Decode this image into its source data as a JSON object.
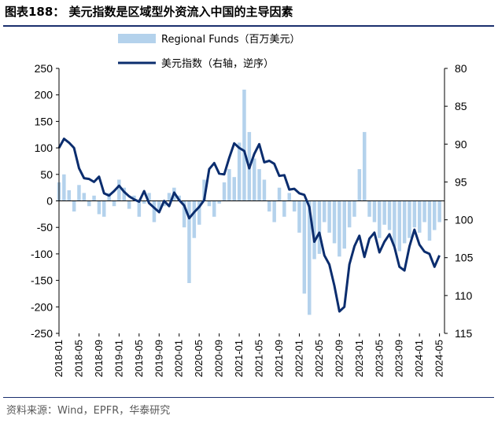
{
  "title": "图表188：  美元指数是区域型外资流入中国的主导因素",
  "source": "资料来源：Wind，EPFR，华泰研究",
  "chart_data": {
    "type": "bar+line",
    "left_axis": {
      "ylim": [
        -250,
        250
      ],
      "ticks": [
        "250",
        "200",
        "150",
        "100",
        "50",
        "0",
        "-50",
        "-100",
        "-150",
        "-200",
        "-250"
      ]
    },
    "right_axis": {
      "ylim": [
        80,
        115
      ],
      "reversed": true,
      "ticks": [
        "80",
        "85",
        "90",
        "95",
        "100",
        "105",
        "110",
        "115"
      ]
    },
    "x_ticks": [
      "2018-01",
      "2018-05",
      "2018-09",
      "2019-01",
      "2019-05",
      "2019-09",
      "2020-01",
      "2020-05",
      "2020-09",
      "2021-01",
      "2021-05",
      "2021-09",
      "2022-01",
      "2022-05",
      "2022-09",
      "2023-01",
      "2023-05",
      "2023-09",
      "2024-01",
      "2024-05"
    ],
    "x_range": [
      "2018-01",
      "2024-06"
    ],
    "legend": {
      "position": "top-center"
    },
    "series": [
      {
        "name": "Regional Funds（百万美元）",
        "type": "bar",
        "axis": "left",
        "color": "#b4d2ec",
        "points": [
          [
            "2018-01",
            35
          ],
          [
            "2018-02",
            50
          ],
          [
            "2018-03",
            20
          ],
          [
            "2018-04",
            -20
          ],
          [
            "2018-05",
            30
          ],
          [
            "2018-06",
            15
          ],
          [
            "2018-07",
            -10
          ],
          [
            "2018-08",
            10
          ],
          [
            "2018-09",
            -25
          ],
          [
            "2018-10",
            -30
          ],
          [
            "2018-11",
            15
          ],
          [
            "2018-12",
            -10
          ],
          [
            "2019-01",
            40
          ],
          [
            "2019-02",
            25
          ],
          [
            "2019-03",
            -15
          ],
          [
            "2019-04",
            10
          ],
          [
            "2019-05",
            -30
          ],
          [
            "2019-06",
            -5
          ],
          [
            "2019-07",
            15
          ],
          [
            "2019-08",
            -40
          ],
          [
            "2019-09",
            -20
          ],
          [
            "2019-10",
            -10
          ],
          [
            "2019-11",
            15
          ],
          [
            "2019-12",
            25
          ],
          [
            "2020-01",
            10
          ],
          [
            "2020-02",
            -50
          ],
          [
            "2020-03",
            -155
          ],
          [
            "2020-04",
            -70
          ],
          [
            "2020-05",
            -45
          ],
          [
            "2020-06",
            40
          ],
          [
            "2020-07",
            -10
          ],
          [
            "2020-08",
            -30
          ],
          [
            "2020-09",
            -5
          ],
          [
            "2020-10",
            35
          ],
          [
            "2020-11",
            60
          ],
          [
            "2020-12",
            45
          ],
          [
            "2021-01",
            110
          ],
          [
            "2021-02",
            210
          ],
          [
            "2021-03",
            130
          ],
          [
            "2021-04",
            80
          ],
          [
            "2021-05",
            60
          ],
          [
            "2021-06",
            40
          ],
          [
            "2021-07",
            -20
          ],
          [
            "2021-08",
            -40
          ],
          [
            "2021-09",
            25
          ],
          [
            "2021-10",
            -30
          ],
          [
            "2021-11",
            15
          ],
          [
            "2021-12",
            -20
          ],
          [
            "2022-01",
            -60
          ],
          [
            "2022-02",
            -175
          ],
          [
            "2022-03",
            -215
          ],
          [
            "2022-04",
            -110
          ],
          [
            "2022-05",
            -100
          ],
          [
            "2022-06",
            -40
          ],
          [
            "2022-07",
            -60
          ],
          [
            "2022-08",
            -80
          ],
          [
            "2022-09",
            -105
          ],
          [
            "2022-10",
            -90
          ],
          [
            "2022-11",
            -50
          ],
          [
            "2022-12",
            -30
          ],
          [
            "2023-01",
            60
          ],
          [
            "2023-02",
            130
          ],
          [
            "2023-03",
            -30
          ],
          [
            "2023-04",
            -40
          ],
          [
            "2023-05",
            -70
          ],
          [
            "2023-06",
            -45
          ],
          [
            "2023-07",
            -55
          ],
          [
            "2023-08",
            -85
          ],
          [
            "2023-09",
            -95
          ],
          [
            "2023-10",
            -80
          ],
          [
            "2023-11",
            -70
          ],
          [
            "2023-12",
            -50
          ],
          [
            "2024-01",
            -60
          ],
          [
            "2024-02",
            -40
          ],
          [
            "2024-03",
            -75
          ],
          [
            "2024-04",
            -55
          ],
          [
            "2024-05",
            -40
          ]
        ]
      },
      {
        "name": "美元指数（右轴，逆序）",
        "type": "line",
        "axis": "right",
        "color": "#0b2d6e",
        "points": [
          [
            "2018-01",
            90.5
          ],
          [
            "2018-02",
            89.3
          ],
          [
            "2018-03",
            89.8
          ],
          [
            "2018-04",
            90.5
          ],
          [
            "2018-05",
            93.2
          ],
          [
            "2018-06",
            94.5
          ],
          [
            "2018-07",
            94.6
          ],
          [
            "2018-08",
            95.0
          ],
          [
            "2018-09",
            94.3
          ],
          [
            "2018-10",
            96.5
          ],
          [
            "2018-11",
            96.8
          ],
          [
            "2018-12",
            96.2
          ],
          [
            "2019-01",
            95.5
          ],
          [
            "2019-02",
            96.3
          ],
          [
            "2019-03",
            96.9
          ],
          [
            "2019-04",
            97.3
          ],
          [
            "2019-05",
            97.6
          ],
          [
            "2019-06",
            96.2
          ],
          [
            "2019-07",
            97.8
          ],
          [
            "2019-08",
            98.4
          ],
          [
            "2019-09",
            99.0
          ],
          [
            "2019-10",
            97.5
          ],
          [
            "2019-11",
            98.2
          ],
          [
            "2019-12",
            96.4
          ],
          [
            "2020-01",
            97.4
          ],
          [
            "2020-02",
            98.1
          ],
          [
            "2020-03",
            99.8
          ],
          [
            "2020-04",
            99.0
          ],
          [
            "2020-05",
            98.3
          ],
          [
            "2020-06",
            97.4
          ],
          [
            "2020-07",
            93.3
          ],
          [
            "2020-08",
            92.5
          ],
          [
            "2020-09",
            93.9
          ],
          [
            "2020-10",
            94.0
          ],
          [
            "2020-11",
            91.8
          ],
          [
            "2020-12",
            89.9
          ],
          [
            "2021-01",
            90.5
          ],
          [
            "2021-02",
            90.9
          ],
          [
            "2021-03",
            93.2
          ],
          [
            "2021-04",
            91.3
          ],
          [
            "2021-05",
            90.0
          ],
          [
            "2021-06",
            92.4
          ],
          [
            "2021-07",
            92.2
          ],
          [
            "2021-08",
            92.6
          ],
          [
            "2021-09",
            94.2
          ],
          [
            "2021-10",
            94.1
          ],
          [
            "2021-11",
            96.0
          ],
          [
            "2021-12",
            95.9
          ],
          [
            "2022-01",
            96.5
          ],
          [
            "2022-02",
            96.7
          ],
          [
            "2022-03",
            98.3
          ],
          [
            "2022-04",
            102.9
          ],
          [
            "2022-05",
            101.7
          ],
          [
            "2022-06",
            104.7
          ],
          [
            "2022-07",
            105.9
          ],
          [
            "2022-08",
            108.7
          ],
          [
            "2022-09",
            112.1
          ],
          [
            "2022-10",
            111.5
          ],
          [
            "2022-11",
            105.9
          ],
          [
            "2022-12",
            103.5
          ],
          [
            "2023-01",
            102.1
          ],
          [
            "2023-02",
            104.9
          ],
          [
            "2023-03",
            102.5
          ],
          [
            "2023-04",
            101.7
          ],
          [
            "2023-05",
            104.3
          ],
          [
            "2023-06",
            102.9
          ],
          [
            "2023-07",
            101.9
          ],
          [
            "2023-08",
            103.6
          ],
          [
            "2023-09",
            106.2
          ],
          [
            "2023-10",
            106.7
          ],
          [
            "2023-11",
            103.5
          ],
          [
            "2023-12",
            101.3
          ],
          [
            "2024-01",
            103.3
          ],
          [
            "2024-02",
            104.2
          ],
          [
            "2024-03",
            104.5
          ],
          [
            "2024-04",
            106.2
          ],
          [
            "2024-05",
            104.7
          ]
        ]
      }
    ]
  }
}
